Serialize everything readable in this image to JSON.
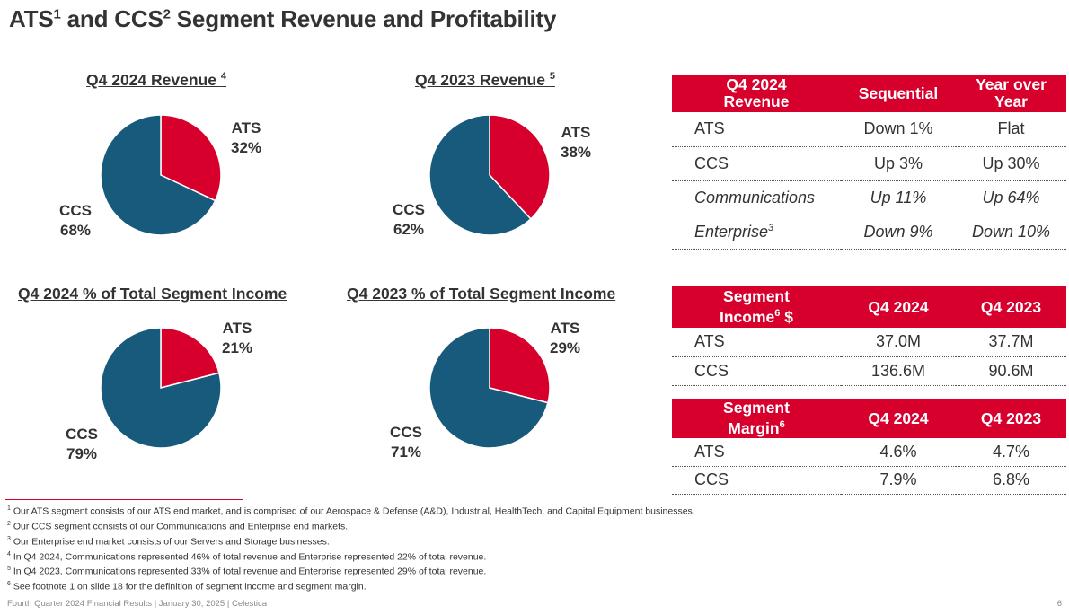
{
  "page_title": {
    "a": "ATS",
    "a_sup": "1",
    "b": " and CCS",
    "b_sup": "2",
    "c": " Segment Revenue and Profitability"
  },
  "colors": {
    "ats": "#d7002d",
    "ccs": "#175a7c",
    "header_bg": "#d7002d"
  },
  "chart_data": [
    {
      "type": "pie",
      "title": "Q4 2024 Revenue",
      "title_sup": "4",
      "slices": [
        {
          "label": "ATS",
          "value": 32,
          "text": "32%"
        },
        {
          "label": "CCS",
          "value": 68,
          "text": "68%"
        }
      ]
    },
    {
      "type": "pie",
      "title": "Q4 2023 Revenue",
      "title_sup": "5",
      "slices": [
        {
          "label": "ATS",
          "value": 38,
          "text": "38%"
        },
        {
          "label": "CCS",
          "value": 62,
          "text": "62%"
        }
      ]
    },
    {
      "type": "pie",
      "title": "Q4 2024 % of Total Segment Income",
      "title_sup": "",
      "slices": [
        {
          "label": "ATS",
          "value": 21,
          "text": "21%"
        },
        {
          "label": "CCS",
          "value": 79,
          "text": "79%"
        }
      ]
    },
    {
      "type": "pie",
      "title": "Q4 2023 % of Total Segment Income",
      "title_sup": "",
      "slices": [
        {
          "label": "ATS",
          "value": 29,
          "text": "29%"
        },
        {
          "label": "CCS",
          "value": 71,
          "text": "71%"
        }
      ]
    }
  ],
  "revenue_table": {
    "headers": [
      "Q4 2024 Revenue",
      "Sequential",
      "Year over Year"
    ],
    "rows": [
      {
        "name": "ATS",
        "sup": "",
        "seq": "Down 1%",
        "yoy": "Flat"
      },
      {
        "name": "CCS",
        "sup": "",
        "seq": "Up 3%",
        "yoy": "Up 30%"
      },
      {
        "name": "Communications",
        "sup": "",
        "seq": "Up 11%",
        "yoy": "Up 64%"
      },
      {
        "name": "Enterprise",
        "sup": "3",
        "seq": "Down 9%",
        "yoy": "Down 10%"
      }
    ]
  },
  "income_table": {
    "h1a": "Segment",
    "h1b": "Income",
    "h1_sup": "6",
    "h1c": " $",
    "h2": "Q4 2024",
    "h3": "Q4 2023",
    "rows": [
      {
        "name": "ATS",
        "a": "37.0M",
        "b": "37.7M"
      },
      {
        "name": "CCS",
        "a": "136.6M",
        "b": "90.6M"
      }
    ]
  },
  "margin_table": {
    "h1a": "Segment",
    "h1b": "Margin",
    "h1_sup": "6",
    "h2": "Q4 2024",
    "h3": "Q4 2023",
    "rows": [
      {
        "name": "ATS",
        "a": "4.6%",
        "b": "4.7%"
      },
      {
        "name": "CCS",
        "a": "7.9%",
        "b": "6.8%"
      }
    ]
  },
  "footnotes": [
    {
      "n": "1",
      "text": " Our ATS segment consists of our ATS end market, and is comprised of our Aerospace & Defense (A&D), Industrial, HealthTech, and Capital Equipment businesses."
    },
    {
      "n": "2",
      "text": " Our CCS segment consists of our Communications and Enterprise end markets."
    },
    {
      "n": "3",
      "text": " Our Enterprise end market consists of our Servers and Storage businesses."
    },
    {
      "n": "4",
      "text": " In Q4 2024, Communications represented 46% of total revenue and Enterprise represented 22% of total revenue."
    },
    {
      "n": "5",
      "text": " In Q4 2023, Communications represented 33% of total revenue and Enterprise represented 29% of total revenue."
    },
    {
      "n": "6",
      "text": " See footnote 1 on slide 18 for the definition of segment income and segment margin."
    }
  ],
  "footer": {
    "text": "Fourth Quarter 2024 Financial Results |  January 30, 2025  |  Celestica",
    "page": "6"
  }
}
